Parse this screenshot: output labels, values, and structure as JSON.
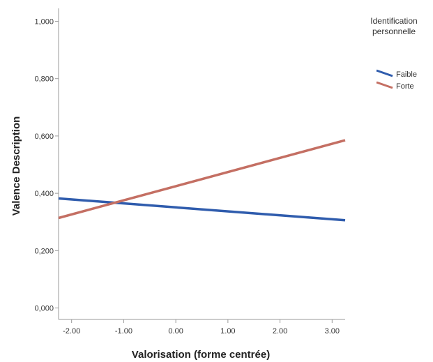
{
  "chart_data": {
    "type": "line",
    "xlabel": "Valorisation (forme centrée)",
    "ylabel": "Valence Description",
    "xlim": [
      -2.25,
      3.25
    ],
    "ylim": [
      -0.04,
      1.045
    ],
    "x_ticks": [
      "-2.00",
      "-1.00",
      "0.00",
      "1.00",
      "2.00",
      "3.00"
    ],
    "x_tick_values": [
      -2,
      -1,
      0,
      1,
      2,
      3
    ],
    "y_ticks": [
      "0,000",
      "0,200",
      "0,400",
      "0,600",
      "0,800",
      "1,000"
    ],
    "y_tick_values": [
      0,
      0.2,
      0.4,
      0.6,
      0.8,
      1.0
    ],
    "grid": false,
    "legend": {
      "title": "Identification personnelle",
      "title_lines": [
        "Identification",
        "personnelle"
      ],
      "placement": "top-right"
    },
    "series": [
      {
        "name": "Faible",
        "color": "#2f5cad",
        "x": [
          -2.25,
          3.25
        ],
        "y": [
          0.382,
          0.306
        ]
      },
      {
        "name": "Forte",
        "color": "#c46f63",
        "x": [
          -2.25,
          3.25
        ],
        "y": [
          0.314,
          0.585
        ]
      }
    ]
  }
}
